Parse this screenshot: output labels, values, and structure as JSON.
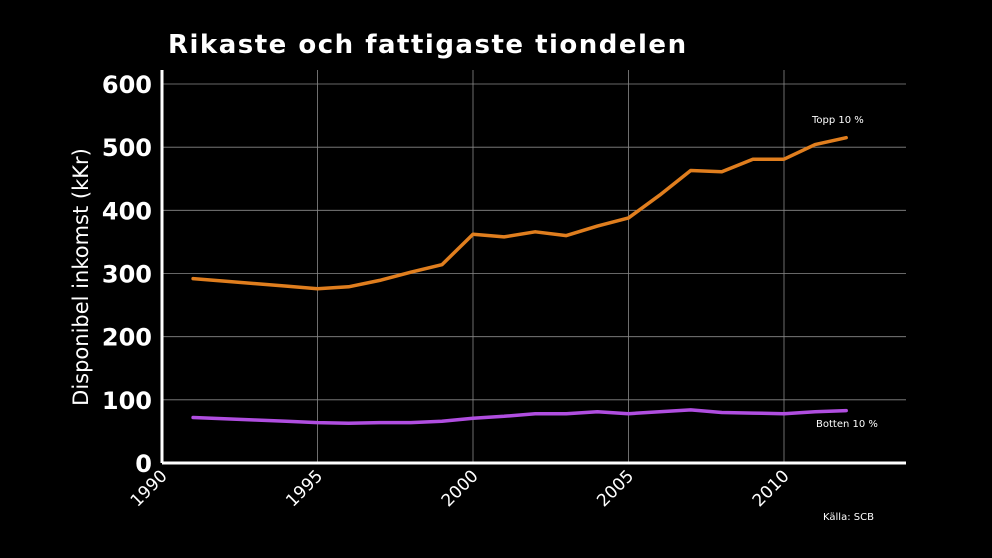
{
  "chart_data": {
    "type": "line",
    "title": "Rikaste och fattigaste tiondelen",
    "ylabel": "Disponibel inkomst (kKr)",
    "xlabel": "",
    "xlim": [
      1990,
      2014
    ],
    "ylim": [
      0,
      600
    ],
    "xticks": [
      "1990",
      "1995",
      "2000",
      "2005",
      "2010"
    ],
    "yticks": [
      "0",
      "100",
      "200",
      "300",
      "400",
      "500",
      "600"
    ],
    "grid": true,
    "x": [
      1991,
      1992,
      1993,
      1994,
      1995,
      1996,
      1997,
      1998,
      1999,
      2000,
      2001,
      2002,
      2003,
      2004,
      2005,
      2006,
      2007,
      2008,
      2009,
      2010,
      2011,
      2012
    ],
    "series": [
      {
        "name": "Topp 10 %",
        "color": "#e07e1e",
        "values": [
          292,
          288,
          284,
          280,
          276,
          279,
          289,
          302,
          314,
          362,
          358,
          366,
          360,
          375,
          388,
          424,
          463,
          461,
          481,
          481,
          504,
          515
        ]
      },
      {
        "name": "Botten 10 %",
        "color": "#b04ee0",
        "values": [
          72,
          70,
          68,
          66,
          64,
          63,
          64,
          64,
          66,
          71,
          74,
          78,
          78,
          81,
          78,
          81,
          84,
          80,
          79,
          78,
          81,
          83
        ]
      }
    ],
    "source": "Källa:  SCB"
  }
}
